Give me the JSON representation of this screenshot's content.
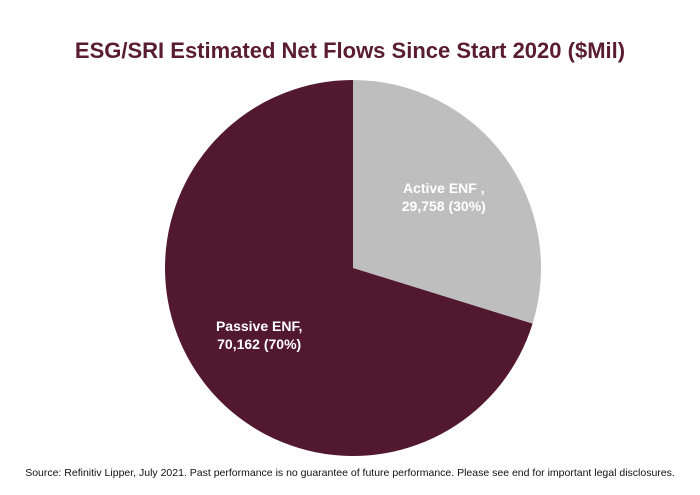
{
  "colors": {
    "passive": "#521830",
    "active": "#bebebe",
    "title": "#5a1c31",
    "label_dark_bg": "#ffffff",
    "label_light_bg": "#ffffff"
  },
  "source_note": "Source: Refinitiv Lipper, July 2021. Past performance is no guarantee of future performance. Please see end for important legal disclosures.",
  "chart_data": {
    "type": "pie",
    "title": "ESG/SRI Estimated Net Flows Since Start 2020 ($Mil)",
    "start_angle_deg": 0,
    "direction": "clockwise",
    "slices": [
      {
        "name": "Active ENF ,",
        "value": 29758,
        "percent": 30,
        "label_line1": "Active ENF ,",
        "label_line2": "29,758 (30%)",
        "color": "#bebebe"
      },
      {
        "name": "Passive ENF,",
        "value": 70162,
        "percent": 70,
        "label_line1": "Passive ENF,",
        "label_line2": "70,162  (70%)",
        "color": "#521830"
      }
    ]
  }
}
